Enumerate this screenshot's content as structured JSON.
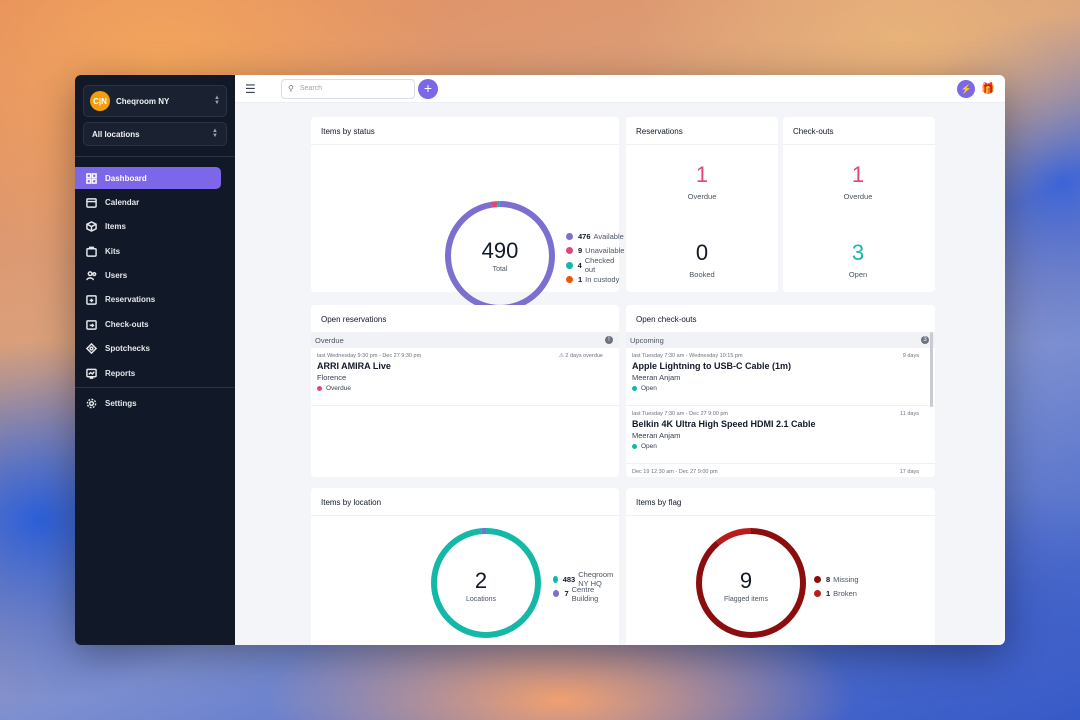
{
  "org": {
    "initials": "C|N",
    "name": "Cheqroom NY"
  },
  "location_selector": {
    "value": "All locations"
  },
  "nav": [
    {
      "label": "Dashboard",
      "icon": "dashboard-icon",
      "active": true
    },
    {
      "label": "Calendar",
      "icon": "calendar-icon"
    },
    {
      "label": "Items",
      "icon": "box-icon"
    },
    {
      "label": "Kits",
      "icon": "kit-icon"
    },
    {
      "label": "Users",
      "icon": "users-icon"
    },
    {
      "label": "Reservations",
      "icon": "reservation-icon"
    },
    {
      "label": "Check-outs",
      "icon": "checkout-icon"
    },
    {
      "label": "Spotchecks",
      "icon": "spotcheck-icon"
    },
    {
      "label": "Reports",
      "icon": "report-icon"
    }
  ],
  "settings_label": "Settings",
  "search": {
    "placeholder": "Search"
  },
  "items_by_status": {
    "title": "Items by status",
    "total": "490",
    "total_label": "Total",
    "legend": [
      {
        "value": 476,
        "label": "Available",
        "color": "#7b6fd0"
      },
      {
        "value": 9,
        "label": "Unavailable",
        "color": "#e0457b"
      },
      {
        "value": 4,
        "label": "Checked out",
        "color": "#14b8a6"
      },
      {
        "value": 1,
        "label": "In custody",
        "color": "#ea580c"
      }
    ]
  },
  "reservations": {
    "title": "Reservations",
    "overdue": {
      "value": "1",
      "label": "Overdue",
      "color": "#e0457b"
    },
    "booked": {
      "value": "0",
      "label": "Booked",
      "color": "#111827"
    }
  },
  "checkouts": {
    "title": "Check-outs",
    "overdue": {
      "value": "1",
      "label": "Overdue",
      "color": "#e0457b"
    },
    "open": {
      "value": "3",
      "label": "Open",
      "color": "#14b8a6"
    }
  },
  "open_reservations": {
    "title": "Open reservations",
    "section": "Overdue",
    "badge": "!",
    "entries": [
      {
        "time": "last Wednesday 9:30 pm - Dec 27 9:30 pm",
        "right": "⚠ 2 days overdue",
        "title": "ARRI AMIRA Live",
        "sub": "Florence",
        "status": "Overdue",
        "status_color": "#e0457b"
      }
    ]
  },
  "open_checkouts": {
    "title": "Open check-outs",
    "section": "Upcoming",
    "badge": "3",
    "entries": [
      {
        "time": "last Tuesday 7:30 am - Wednesday 10:15 pm",
        "right": "9 days",
        "title": "Apple Lightning to USB-C Cable (1m)",
        "sub": "Meeran Anjam",
        "status": "Open",
        "status_color": "#14b8a6"
      },
      {
        "time": "last Tuesday 7:30 am - Dec 27 9:00 pm",
        "right": "11 days",
        "title": "Belkin 4K Ultra High Speed HDMI 2.1 Cable",
        "sub": "Meeran Anjam",
        "status": "Open",
        "status_color": "#14b8a6"
      },
      {
        "time": "Dec 19 12:30 am - Dec 27 9:00 pm",
        "right": "17 days",
        "title": "",
        "sub": "",
        "status": "",
        "status_color": "#14b8a6"
      }
    ]
  },
  "items_by_location": {
    "title": "Items by location",
    "total": "2",
    "total_label": "Locations",
    "legend": [
      {
        "value": 483,
        "label": "Cheqroom NY HQ",
        "color": "#14b8a6"
      },
      {
        "value": 7,
        "label": "Centre Building",
        "color": "#7b6fd0"
      }
    ]
  },
  "items_by_flag": {
    "title": "Items by flag",
    "total": "9",
    "total_label": "Flagged items",
    "legend": [
      {
        "value": 8,
        "label": "Missing",
        "color": "#8b0d0d"
      },
      {
        "value": 1,
        "label": "Broken",
        "color": "#b91c1c"
      }
    ]
  }
}
